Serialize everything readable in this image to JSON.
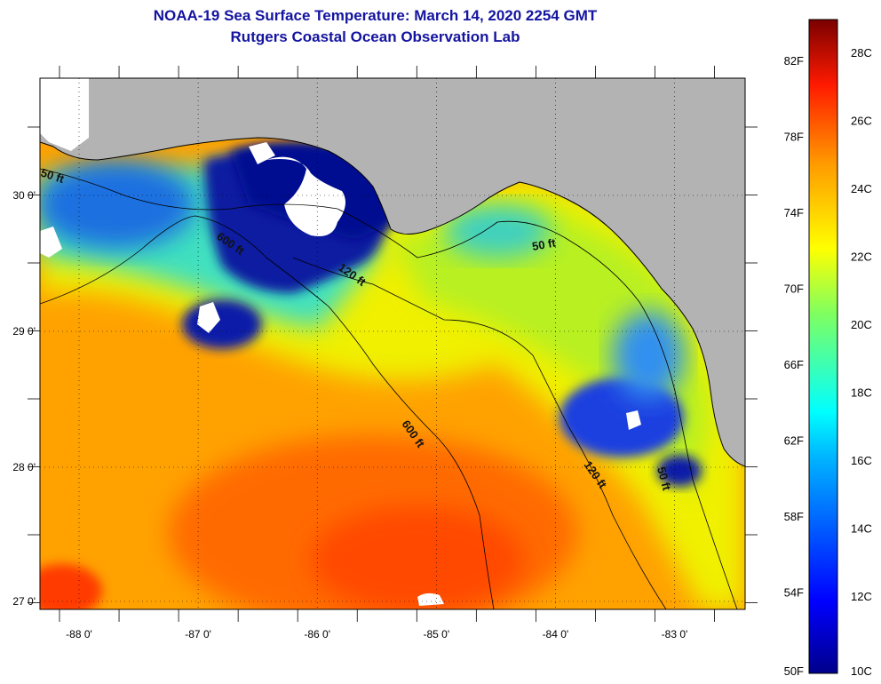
{
  "title": {
    "line1": "NOAA-19 Sea Surface Temperature:  March 14, 2020 2254 GMT",
    "line2": "Rutgers Coastal Ocean Observation Lab"
  },
  "axes": {
    "lon_labels": [
      "-88 0'",
      "-87 0'",
      "-86 0'",
      "-85 0'",
      "-84 0'",
      "-83 0'"
    ],
    "lat_labels": [
      "30 0'",
      "29 0'",
      "28 0'",
      "27 0'"
    ]
  },
  "contours": [
    {
      "label": "50 ft"
    },
    {
      "label": "600 ft"
    },
    {
      "label": "120 ft"
    },
    {
      "label": "50 ft"
    },
    {
      "label": "600 ft"
    },
    {
      "label": "120 ft"
    },
    {
      "label": "50 ft"
    }
  ],
  "colorbar": {
    "fahrenheit": [
      "82F",
      "78F",
      "74F",
      "70F",
      "66F",
      "62F",
      "58F",
      "54F",
      "50F"
    ],
    "celsius": [
      "28C",
      "26C",
      "24C",
      "22C",
      "20C",
      "18C",
      "16C",
      "14C",
      "12C",
      "10C"
    ]
  },
  "colors": {
    "title": "#1414a0",
    "land": "#b3b3b3",
    "cloud": "#ffffff"
  }
}
